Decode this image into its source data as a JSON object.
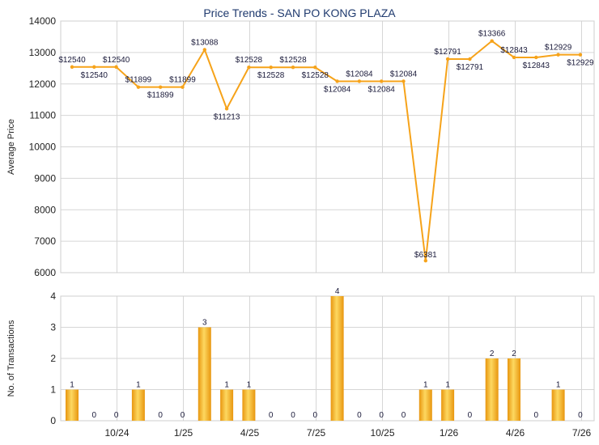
{
  "title": "Price Trends - SAN PO KONG PLAZA",
  "colors": {
    "line": "#f6a31a",
    "bar_light": "#fbd35a",
    "bar_dark": "#e8960f",
    "grid": "#d6d6d6"
  },
  "chart_data": [
    {
      "type": "line",
      "title": "Price Trends - SAN PO KONG PLAZA",
      "ylabel": "Average Price",
      "ylim": [
        6000,
        14000
      ],
      "yticks": [
        6000,
        7000,
        8000,
        9000,
        10000,
        11000,
        12000,
        13000,
        14000
      ],
      "grid": true,
      "series": [
        {
          "values": [
            12540,
            12540,
            12540,
            11899,
            11899,
            11899,
            13088,
            11213,
            12528,
            12528,
            12528,
            12528,
            12084,
            12084,
            12084,
            12084,
            6381,
            12791,
            12791,
            13366,
            12843,
            12843,
            12929,
            12929
          ],
          "labels": [
            "$12540",
            "$12540",
            "$12540",
            "$11899",
            "$11899",
            "$11899",
            "$13088",
            "$11213",
            "$12528",
            "$12528",
            "$12528",
            "$12528",
            "$12084",
            "$12084",
            "$12084",
            "$12084",
            "$6381",
            "$12791",
            "$12791",
            "$13366",
            "$12843",
            "$12843",
            "$12929",
            "$12929"
          ]
        }
      ]
    },
    {
      "type": "bar",
      "ylabel": "No. of Transactions",
      "ylim": [
        0,
        4
      ],
      "yticks": [
        0,
        1,
        2,
        3,
        4
      ],
      "xticks": [
        "10/24",
        "1/25",
        "4/25",
        "7/25",
        "10/25",
        "1/26",
        "4/26",
        "7/26"
      ],
      "grid": true,
      "values": [
        1,
        0,
        0,
        1,
        0,
        0,
        3,
        1,
        1,
        0,
        0,
        0,
        4,
        0,
        0,
        0,
        1,
        1,
        0,
        2,
        2,
        0,
        1,
        0
      ]
    }
  ]
}
